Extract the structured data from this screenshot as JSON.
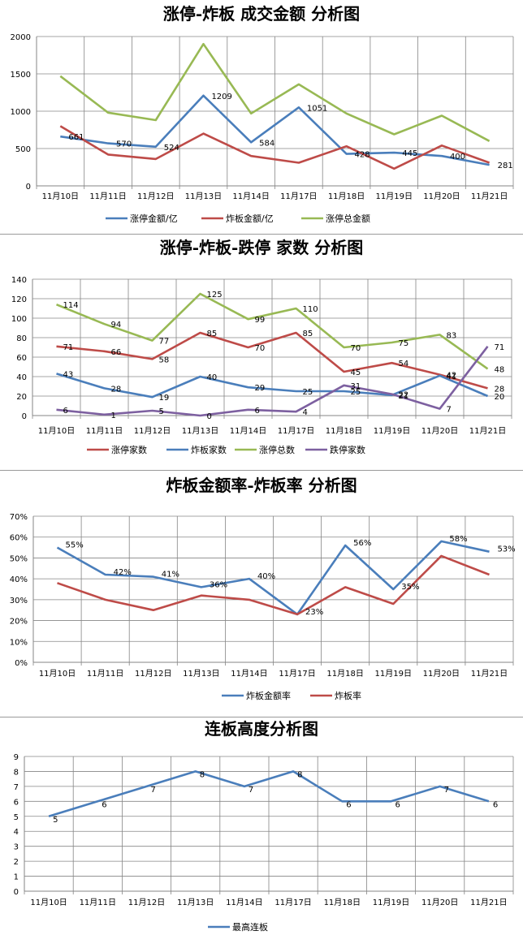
{
  "colors": {
    "blue": "#4a7ebb",
    "red": "#be4b48",
    "green": "#98b954",
    "purple": "#7d60a0",
    "grid": "#868686",
    "axis": "#868686"
  },
  "chart_data": [
    {
      "type": "line",
      "title": "涨停-炸板 成交金额 分析图",
      "categories": [
        "11月10日",
        "11月11日",
        "11月12日",
        "11月13日",
        "11月14日",
        "11月17日",
        "11月18日",
        "11月19日",
        "11月20日",
        "11月21日"
      ],
      "ylim": [
        0,
        2000
      ],
      "yticks": [
        "0",
        "500",
        "1000",
        "1500",
        "2000"
      ],
      "grid": true,
      "legend": "bottom",
      "series": [
        {
          "name": "涨停金额/亿",
          "color": "blue",
          "values": [
            661,
            570,
            524,
            1209,
            584,
            1051,
            428,
            445,
            400,
            281
          ],
          "labels": [
            "661",
            "570",
            "524",
            "1209",
            "584",
            "1051",
            "428",
            "445",
            "400",
            "281"
          ]
        },
        {
          "name": "炸板金额/亿",
          "color": "red",
          "values": [
            800,
            420,
            360,
            700,
            400,
            310,
            530,
            230,
            540,
            310
          ],
          "labels": []
        },
        {
          "name": "涨停总金额",
          "color": "green",
          "values": [
            1470,
            980,
            880,
            1900,
            970,
            1360,
            970,
            690,
            940,
            600
          ],
          "labels": []
        }
      ]
    },
    {
      "type": "line",
      "title": "涨停-炸板-跌停 家数 分析图",
      "categories": [
        "11月10日",
        "11月11日",
        "11月12日",
        "11月13日",
        "11月14日",
        "11月17日",
        "11月18日",
        "11月19日",
        "11月20日",
        "11月21日"
      ],
      "ylim": [
        0,
        140
      ],
      "yticks": [
        "0",
        "20",
        "40",
        "60",
        "80",
        "100",
        "120",
        "140"
      ],
      "grid": true,
      "legend": "bottom",
      "series": [
        {
          "name": "涨停家数",
          "color": "red",
          "values": [
            71,
            66,
            58,
            85,
            70,
            85,
            45,
            54,
            42,
            28
          ],
          "labels": [
            "71",
            "66",
            "58",
            "85",
            "70",
            "85",
            "45",
            "54",
            "42",
            "28"
          ]
        },
        {
          "name": "炸板家数",
          "color": "blue",
          "values": [
            43,
            28,
            19,
            40,
            29,
            25,
            25,
            21,
            41,
            20
          ],
          "labels": [
            "43",
            "28",
            "19",
            "40",
            "29",
            "25",
            "25",
            "21",
            "41",
            "20"
          ]
        },
        {
          "name": "涨停总数",
          "color": "green",
          "values": [
            114,
            94,
            77,
            125,
            99,
            110,
            70,
            75,
            83,
            48
          ],
          "labels": [
            "114",
            "94",
            "77",
            "125",
            "99",
            "110",
            "70",
            "75",
            "83",
            "48"
          ]
        },
        {
          "name": "跌停家数",
          "color": "purple",
          "values": [
            6,
            1,
            5,
            0,
            6,
            4,
            31,
            22,
            7,
            71
          ],
          "labels": [
            "6",
            "1",
            "5",
            "0",
            "6",
            "4",
            "31",
            "22",
            "7",
            "71"
          ]
        }
      ]
    },
    {
      "type": "line",
      "title": "炸板金额率-炸板率 分析图",
      "categories": [
        "11月10日",
        "11月11日",
        "11月12日",
        "11月13日",
        "11月14日",
        "11月17日",
        "11月18日",
        "11月19日",
        "11月20日",
        "11月21日"
      ],
      "ylim": [
        0,
        70
      ],
      "yticks": [
        "0%",
        "10%",
        "20%",
        "30%",
        "40%",
        "50%",
        "60%",
        "70%"
      ],
      "grid": true,
      "legend": "bottom",
      "series": [
        {
          "name": "炸板金额率",
          "color": "blue",
          "values": [
            55,
            42,
            41,
            36,
            40,
            23,
            56,
            35,
            58,
            53
          ],
          "labels": [
            "55%",
            "42%",
            "41%",
            "36%",
            "40%",
            "23%",
            "56%",
            "35%",
            "58%",
            "53%"
          ]
        },
        {
          "name": "炸板率",
          "color": "red",
          "values": [
            38,
            30,
            25,
            32,
            30,
            23,
            36,
            28,
            51,
            42
          ],
          "labels": []
        }
      ]
    },
    {
      "type": "line",
      "title": "连板高度分析图",
      "categories": [
        "11月10日",
        "11月11日",
        "11月12日",
        "11月13日",
        "11月14日",
        "11月17日",
        "11月18日",
        "11月19日",
        "11月20日",
        "11月21日"
      ],
      "ylim": [
        0,
        9
      ],
      "yticks": [
        "0",
        "1",
        "2",
        "3",
        "4",
        "5",
        "6",
        "7",
        "8",
        "9"
      ],
      "grid": true,
      "legend": "bottom",
      "series": [
        {
          "name": "最高连板",
          "color": "blue",
          "values": [
            5,
            6,
            7,
            8,
            7,
            8,
            6,
            6,
            7,
            6
          ],
          "labels": [
            "5",
            "6",
            "7",
            "8",
            "7",
            "8",
            "6",
            "6",
            "7",
            "6"
          ]
        }
      ]
    }
  ]
}
